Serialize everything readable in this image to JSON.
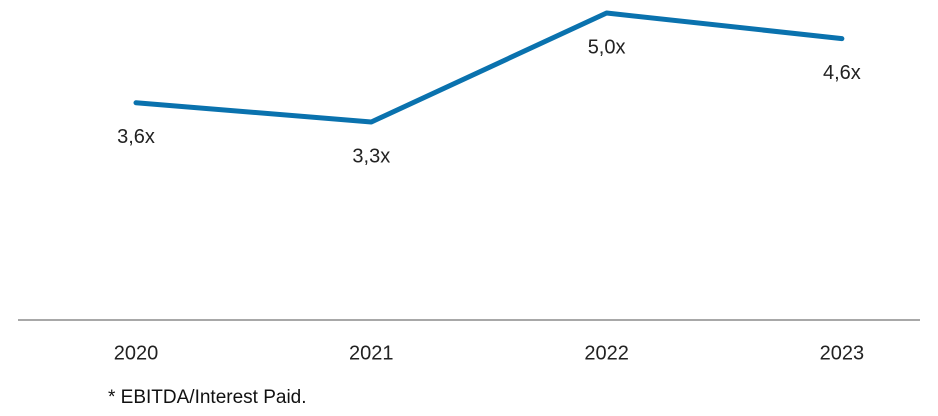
{
  "chart_data": {
    "type": "line",
    "categories": [
      "2020",
      "2021",
      "2022",
      "2023"
    ],
    "values": [
      3.6,
      3.3,
      5.0,
      4.6
    ],
    "value_labels": [
      "3,6x",
      "3,3x",
      "5,0x",
      "4,6x"
    ],
    "color": "#0a72ae",
    "note": "* EBITDA/Interest Paid."
  }
}
